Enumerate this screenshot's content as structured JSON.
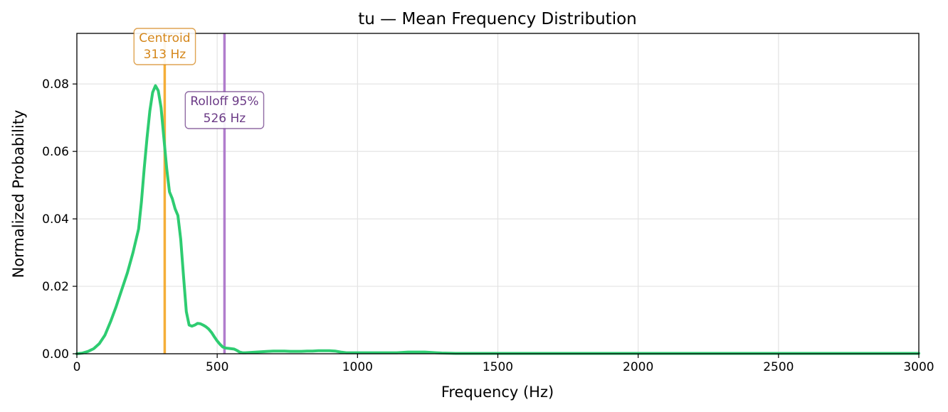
{
  "chart_data": {
    "type": "line",
    "title": "tu  —  Mean Frequency Distribution",
    "xlabel": "Frequency (Hz)",
    "ylabel": "Normalized Probability",
    "xlim": [
      0,
      3000
    ],
    "ylim": [
      0,
      0.095
    ],
    "grid": true,
    "x_ticks": [
      0,
      500,
      1000,
      1500,
      2000,
      2500,
      3000
    ],
    "x_tick_labels": [
      "0",
      "500",
      "1000",
      "1500",
      "2000",
      "2500",
      "3000"
    ],
    "y_ticks": [
      0,
      0.02,
      0.04,
      0.06,
      0.08
    ],
    "y_tick_labels": [
      "0.00",
      "0.02",
      "0.04",
      "0.06",
      "0.08"
    ],
    "series": [
      {
        "color": "#2ecc71",
        "x": [
          0,
          20,
          40,
          60,
          80,
          100,
          120,
          140,
          160,
          180,
          200,
          220,
          230,
          240,
          250,
          260,
          270,
          280,
          290,
          300,
          310,
          320,
          330,
          340,
          350,
          360,
          370,
          380,
          390,
          400,
          410,
          420,
          430,
          440,
          450,
          460,
          470,
          480,
          490,
          500,
          510,
          520,
          530,
          540,
          550,
          560,
          570,
          580,
          590,
          600,
          620,
          640,
          660,
          680,
          700,
          720,
          740,
          760,
          780,
          800,
          820,
          840,
          860,
          880,
          900,
          920,
          940,
          960,
          980,
          1000,
          1020,
          1040,
          1060,
          1080,
          1100,
          1120,
          1140,
          1160,
          1180,
          1200,
          1220,
          1240,
          1260,
          1280,
          1300,
          1350,
          1400,
          1500,
          1600,
          1800,
          2000,
          2500,
          3000
        ],
        "values": [
          0.0,
          0.0002,
          0.0007,
          0.0015,
          0.003,
          0.0055,
          0.0095,
          0.014,
          0.019,
          0.024,
          0.03,
          0.037,
          0.045,
          0.055,
          0.064,
          0.072,
          0.0775,
          0.0795,
          0.078,
          0.073,
          0.064,
          0.055,
          0.048,
          0.046,
          0.043,
          0.041,
          0.034,
          0.023,
          0.0125,
          0.0085,
          0.0082,
          0.0085,
          0.009,
          0.0089,
          0.0085,
          0.008,
          0.0073,
          0.0063,
          0.005,
          0.0038,
          0.0028,
          0.002,
          0.0017,
          0.0016,
          0.0015,
          0.0014,
          0.001,
          0.0005,
          0.0003,
          0.0003,
          0.0004,
          0.0005,
          0.0006,
          0.0007,
          0.0008,
          0.0008,
          0.0008,
          0.0007,
          0.0007,
          0.0007,
          0.0008,
          0.0008,
          0.0009,
          0.0009,
          0.0009,
          0.0008,
          0.0005,
          0.0003,
          0.0003,
          0.0003,
          0.0003,
          0.0003,
          0.0003,
          0.0003,
          0.0003,
          0.0003,
          0.0003,
          0.0004,
          0.0005,
          0.0005,
          0.0005,
          0.0005,
          0.0004,
          0.0003,
          0.0002,
          0.0001,
          0.0001,
          0.0001,
          0.0001,
          0.0001,
          0.0001,
          0.0001,
          0.0001
        ]
      }
    ],
    "reference_lines": [
      {
        "x": 313,
        "color": "#f5a623",
        "label_line1": "Centroid",
        "label_line2": "313 Hz",
        "text_color": "#d4861a"
      },
      {
        "x": 526,
        "color": "#a970c8",
        "label_line1": "Rolloff 95%",
        "label_line2": "526 Hz",
        "text_color": "#6b3a86"
      }
    ]
  }
}
